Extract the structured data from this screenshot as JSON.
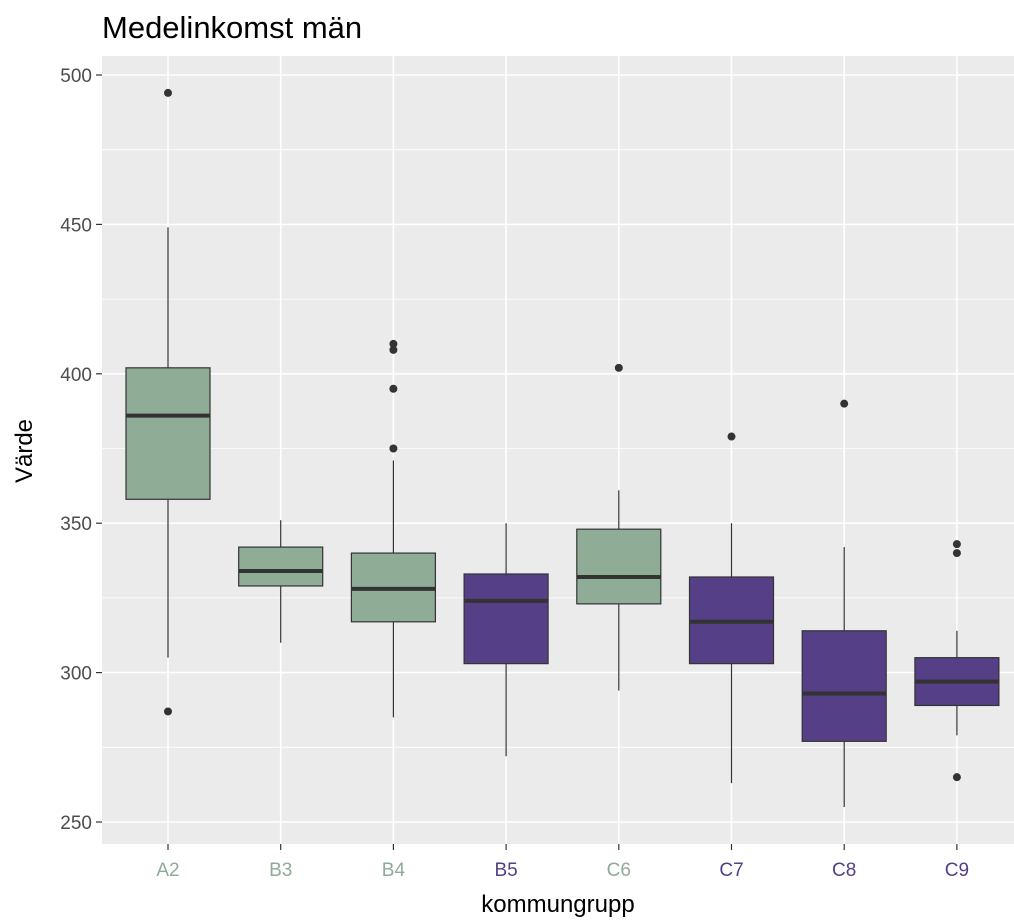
{
  "chart_data": {
    "type": "boxplot",
    "title": "Medelinkomst män",
    "xlabel": "kommungrupp",
    "ylabel": "Värde",
    "ylim": [
      244,
      506
    ],
    "y_ticks": [
      250,
      300,
      350,
      400,
      450,
      500
    ],
    "y_tick_labels": [
      "250",
      "300",
      "350",
      "400",
      "450",
      "500"
    ],
    "grid": true,
    "colors": {
      "green": "#8fac97",
      "purple": "#553f87",
      "panel_background": "#ebebeb",
      "grid": "#ffffff"
    },
    "categories": [
      "A2",
      "B3",
      "B4",
      "B5",
      "C6",
      "C7",
      "C8",
      "C9"
    ],
    "boxes": [
      {
        "category": "A2",
        "color": "green",
        "whisker_low": 305,
        "q1": 358,
        "median": 386,
        "q3": 402,
        "whisker_high": 449,
        "outliers": [
          494,
          287
        ]
      },
      {
        "category": "B3",
        "color": "green",
        "whisker_low": 310,
        "q1": 329,
        "median": 334,
        "q3": 342,
        "whisker_high": 351,
        "outliers": []
      },
      {
        "category": "B4",
        "color": "green",
        "whisker_low": 285,
        "q1": 317,
        "median": 328,
        "q3": 340,
        "whisker_high": 371,
        "outliers": [
          410,
          408,
          395,
          375
        ]
      },
      {
        "category": "B5",
        "color": "purple",
        "whisker_low": 272,
        "q1": 303,
        "median": 324,
        "q3": 333,
        "whisker_high": 350,
        "outliers": []
      },
      {
        "category": "C6",
        "color": "green",
        "whisker_low": 294,
        "q1": 323,
        "median": 332,
        "q3": 348,
        "whisker_high": 361,
        "outliers": [
          402
        ]
      },
      {
        "category": "C7",
        "color": "purple",
        "whisker_low": 263,
        "q1": 303,
        "median": 317,
        "q3": 332,
        "whisker_high": 350,
        "outliers": [
          379
        ]
      },
      {
        "category": "C8",
        "color": "purple",
        "whisker_low": 255,
        "q1": 277,
        "median": 293,
        "q3": 314,
        "whisker_high": 342,
        "outliers": [
          390
        ]
      },
      {
        "category": "C9",
        "color": "purple",
        "whisker_low": 279,
        "q1": 289,
        "median": 297,
        "q3": 305,
        "whisker_high": 314,
        "outliers": [
          343,
          340,
          265
        ]
      }
    ]
  }
}
